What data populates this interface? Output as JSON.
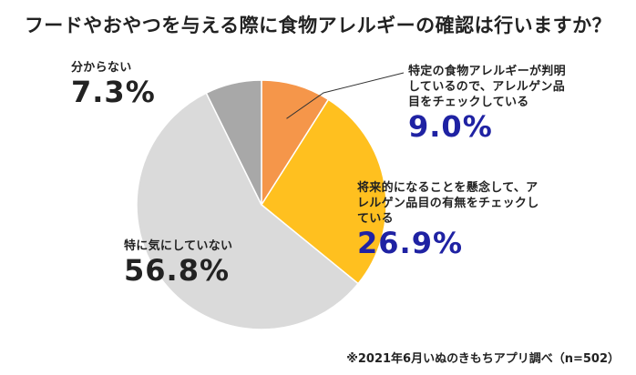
{
  "title": "フードやおやつを与える際に食物アレルギーの確認は行いますか？",
  "colors": {
    "identified": "#f5964a",
    "future": "#ffc01f",
    "not_care": "#dadada",
    "unknown": "#a8a8a8",
    "percent_blue": "#1f22a3",
    "text": "#222222"
  },
  "chart_data": {
    "type": "pie",
    "title": "フードやおやつを与える際に食物アレルギーの確認は行いますか？",
    "categories": [
      "特定の食物アレルギーが判明しているので、アレルゲン品目をチェックしている",
      "将来的になることを懸念して、アレルゲン品目の有無をチェックしている",
      "特に気にしていない",
      "分からない"
    ],
    "values": [
      9.0,
      26.9,
      56.8,
      7.3
    ],
    "value_labels": [
      "9.0%",
      "26.9%",
      "56.8%",
      "7.3%"
    ],
    "unit": "%"
  },
  "labels": {
    "identified": {
      "lines": [
        "特定の食物アレルギーが判明",
        "しているので、アレルゲン品",
        "目をチェックしている"
      ],
      "pct": "9.0%"
    },
    "future": {
      "lines": [
        "将来的になることを懸念して、ア",
        "レルゲン品目の有無をチェックし",
        "ている"
      ],
      "pct": "26.9%"
    },
    "not_care": {
      "lines": [
        "特に気にしていない"
      ],
      "pct": "56.8%"
    },
    "unknown": {
      "lines": [
        "分からない"
      ],
      "pct": "7.3%"
    }
  },
  "source": "※2021年6月いぬのきもちアプリ調べ（n=502）"
}
